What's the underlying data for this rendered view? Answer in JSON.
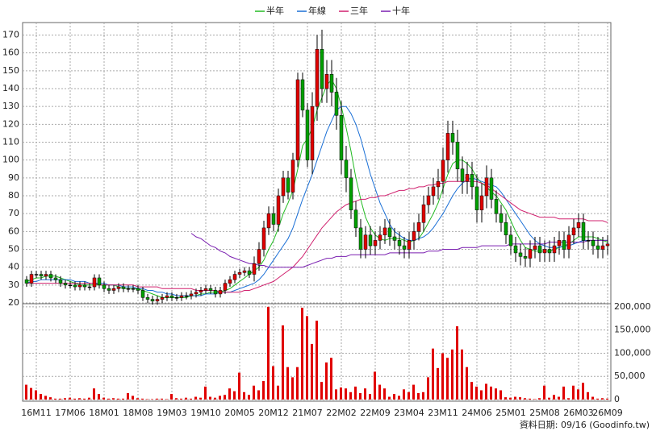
{
  "chart_data": {
    "type": "candlestick",
    "annotation": "資料日期: 09/16  (Goodinfo.tw)",
    "legend": "top",
    "grid": true,
    "up_color": "#e00000",
    "down_color": "#00a000",
    "categories": [
      null,
      null,
      "16M11",
      null,
      null,
      null,
      null,
      null,
      null,
      "17M06",
      null,
      null,
      null,
      null,
      null,
      null,
      "18M01",
      null,
      null,
      null,
      null,
      null,
      null,
      "18M08",
      null,
      null,
      null,
      null,
      null,
      null,
      "19M03",
      null,
      null,
      null,
      null,
      null,
      null,
      "19M10",
      null,
      null,
      null,
      null,
      null,
      null,
      "20M05",
      null,
      null,
      null,
      null,
      null,
      null,
      "20M12",
      null,
      null,
      null,
      null,
      null,
      null,
      "21M07",
      null,
      null,
      null,
      null,
      null,
      null,
      "22M02",
      null,
      null,
      null,
      null,
      null,
      null,
      "22M09",
      null,
      null,
      null,
      null,
      null,
      null,
      "23M04",
      null,
      null,
      null,
      null,
      null,
      null,
      "23M11",
      null,
      null,
      null,
      null,
      null,
      null,
      "24M06",
      null,
      null,
      null,
      null,
      null,
      null,
      "25M01",
      null,
      null,
      null,
      null,
      null,
      null,
      "25M08",
      null,
      null,
      null,
      null,
      null,
      null,
      "26M03",
      null,
      null,
      null,
      null,
      null,
      "26M09"
    ],
    "open": [
      33,
      31,
      36,
      36,
      35,
      36,
      34,
      33,
      31,
      30,
      30,
      29,
      30,
      29,
      29,
      34,
      30,
      28,
      27,
      28,
      29,
      28,
      28,
      28,
      27,
      23,
      22,
      21,
      22,
      23,
      24,
      23,
      23,
      24,
      24,
      25,
      26,
      27,
      28,
      27,
      25,
      27,
      31,
      33,
      36,
      37,
      38,
      36,
      42,
      50,
      62,
      70,
      64,
      80,
      90,
      82,
      100,
      145,
      128,
      100,
      130,
      162,
      140,
      148,
      138,
      125,
      100,
      90,
      72,
      62,
      50,
      58,
      52,
      55,
      58,
      62,
      57,
      55,
      52,
      50,
      55,
      60,
      65,
      75,
      80,
      85,
      88,
      100,
      115,
      110,
      95,
      88,
      92,
      85,
      72,
      80,
      90,
      78,
      70,
      65,
      58,
      52,
      48,
      46,
      45,
      50,
      52,
      48,
      50,
      48,
      52,
      55,
      50,
      58,
      62,
      65,
      55,
      55,
      52,
      50,
      52
    ],
    "high": [
      35,
      38,
      38,
      38,
      38,
      38,
      36,
      35,
      33,
      32,
      32,
      32,
      32,
      31,
      36,
      36,
      32,
      30,
      30,
      31,
      31,
      30,
      30,
      30,
      29,
      25,
      24,
      24,
      25,
      26,
      26,
      25,
      26,
      26,
      27,
      28,
      29,
      30,
      30,
      29,
      29,
      33,
      35,
      38,
      39,
      40,
      40,
      46,
      54,
      66,
      74,
      74,
      84,
      94,
      94,
      104,
      149,
      149,
      132,
      138,
      170,
      173,
      156,
      156,
      146,
      133,
      108,
      95,
      77,
      67,
      63,
      63,
      60,
      63,
      67,
      67,
      62,
      60,
      57,
      60,
      65,
      70,
      80,
      85,
      90,
      95,
      107,
      122,
      122,
      117,
      102,
      99,
      99,
      92,
      87,
      97,
      95,
      83,
      75,
      70,
      63,
      57,
      53,
      51,
      55,
      57,
      57,
      55,
      55,
      57,
      60,
      60,
      63,
      67,
      70,
      70,
      60,
      60,
      57,
      57,
      58
    ],
    "low": [
      29,
      29,
      34,
      33,
      33,
      32,
      31,
      29,
      28,
      28,
      27,
      27,
      27,
      27,
      27,
      28,
      26,
      25,
      25,
      26,
      26,
      26,
      26,
      25,
      21,
      20,
      19,
      19,
      20,
      21,
      21,
      21,
      21,
      22,
      22,
      23,
      24,
      25,
      25,
      23,
      23,
      25,
      29,
      31,
      34,
      35,
      34,
      32,
      38,
      46,
      58,
      60,
      60,
      76,
      78,
      78,
      96,
      124,
      96,
      92,
      122,
      132,
      132,
      130,
      117,
      92,
      82,
      67,
      57,
      45,
      45,
      47,
      47,
      50,
      53,
      52,
      50,
      47,
      45,
      45,
      50,
      55,
      60,
      70,
      75,
      78,
      81,
      93,
      103,
      88,
      81,
      81,
      78,
      65,
      65,
      73,
      73,
      65,
      60,
      53,
      47,
      43,
      41,
      40,
      40,
      45,
      43,
      43,
      43,
      43,
      47,
      45,
      45,
      53,
      57,
      50,
      50,
      47,
      45,
      45,
      47
    ],
    "close": [
      31,
      36,
      36,
      35,
      36,
      34,
      33,
      31,
      30,
      30,
      29,
      30,
      29,
      29,
      34,
      30,
      28,
      27,
      28,
      29,
      28,
      28,
      28,
      27,
      23,
      22,
      21,
      22,
      23,
      24,
      23,
      23,
      24,
      24,
      25,
      26,
      27,
      28,
      27,
      25,
      27,
      31,
      33,
      36,
      37,
      38,
      36,
      42,
      50,
      62,
      70,
      64,
      80,
      90,
      82,
      100,
      145,
      128,
      100,
      130,
      162,
      140,
      148,
      138,
      125,
      100,
      90,
      72,
      62,
      50,
      58,
      52,
      55,
      58,
      62,
      57,
      55,
      52,
      50,
      55,
      60,
      65,
      75,
      80,
      85,
      88,
      100,
      115,
      110,
      95,
      88,
      92,
      85,
      72,
      80,
      90,
      78,
      70,
      65,
      58,
      52,
      48,
      46,
      45,
      50,
      52,
      48,
      50,
      48,
      52,
      55,
      50,
      58,
      62,
      65,
      55,
      55,
      52,
      50,
      52,
      53
    ],
    "series": [
      {
        "name": "半年",
        "color": "#22bb22",
        "values": [
          32,
          33,
          34,
          34,
          35,
          35,
          35,
          34,
          33,
          32,
          31,
          30,
          30,
          30,
          30,
          30,
          30,
          30,
          30,
          29,
          28,
          28,
          28,
          28,
          27,
          26,
          25,
          24,
          23,
          23,
          23,
          23,
          23,
          23,
          24,
          24,
          25,
          25,
          26,
          26,
          26,
          27,
          28,
          30,
          32,
          34,
          36,
          38,
          40,
          44,
          50,
          55,
          62,
          70,
          76,
          83,
          95,
          108,
          112,
          118,
          128,
          135,
          142,
          145,
          140,
          130,
          118,
          105,
          90,
          78,
          68,
          62,
          58,
          56,
          55,
          56,
          56,
          56,
          55,
          54,
          55,
          56,
          60,
          65,
          70,
          76,
          84,
          92,
          98,
          100,
          100,
          98,
          95,
          90,
          87,
          85,
          82,
          80,
          76,
          72,
          66,
          60,
          55,
          51,
          50,
          49,
          49,
          49,
          49,
          50,
          51,
          52,
          53,
          55,
          57,
          57,
          57,
          57,
          56,
          55,
          54
        ]
      },
      {
        "name": "年線",
        "color": "#1a6fd6",
        "values": [
          31,
          32,
          32,
          33,
          33,
          33,
          33,
          33,
          33,
          33,
          32,
          32,
          32,
          31,
          31,
          31,
          31,
          30,
          30,
          30,
          29,
          29,
          29,
          28,
          28,
          27,
          27,
          26,
          26,
          25,
          25,
          24,
          24,
          24,
          24,
          24,
          24,
          25,
          25,
          25,
          26,
          26,
          26,
          27,
          28,
          29,
          30,
          31,
          33,
          36,
          40,
          44,
          48,
          52,
          56,
          62,
          70,
          78,
          85,
          92,
          100,
          108,
          116,
          122,
          128,
          130,
          130,
          126,
          120,
          112,
          102,
          92,
          84,
          76,
          70,
          64,
          60,
          58,
          56,
          55,
          55,
          56,
          57,
          59,
          62,
          66,
          70,
          75,
          80,
          84,
          87,
          89,
          90,
          89,
          88,
          87,
          86,
          85,
          82,
          78,
          74,
          70,
          66,
          62,
          58,
          55,
          53,
          52,
          51,
          51,
          51,
          52,
          52,
          53,
          54,
          55,
          55,
          55,
          55,
          55,
          55
        ]
      },
      {
        "name": "三年",
        "color": "#d0206e",
        "values": [
          31,
          31,
          31,
          31,
          31,
          31,
          31,
          31,
          31,
          31,
          31,
          31,
          31,
          31,
          31,
          30,
          30,
          30,
          30,
          30,
          30,
          30,
          30,
          29,
          29,
          29,
          29,
          29,
          28,
          28,
          28,
          28,
          28,
          28,
          28,
          27,
          27,
          27,
          27,
          27,
          26,
          26,
          26,
          26,
          26,
          27,
          27,
          28,
          29,
          30,
          31,
          32,
          34,
          36,
          38,
          40,
          43,
          46,
          50,
          54,
          58,
          62,
          65,
          68,
          71,
          73,
          75,
          76,
          77,
          78,
          78,
          79,
          79,
          80,
          80,
          81,
          82,
          83,
          83,
          84,
          84,
          85,
          85,
          86,
          86,
          87,
          87,
          88,
          88,
          88,
          88,
          88,
          88,
          88,
          87,
          86,
          84,
          82,
          80,
          78,
          76,
          74,
          72,
          71,
          70,
          69,
          68,
          68,
          68,
          68,
          67,
          67,
          67,
          67,
          67,
          67,
          66,
          66,
          66,
          66,
          65
        ]
      },
      {
        "name": "十年",
        "color": "#7a1fb0",
        "values": [
          null,
          null,
          null,
          null,
          null,
          null,
          null,
          null,
          null,
          null,
          null,
          null,
          null,
          null,
          null,
          null,
          null,
          null,
          null,
          null,
          null,
          null,
          null,
          null,
          null,
          null,
          null,
          null,
          null,
          null,
          null,
          null,
          null,
          null,
          59,
          57,
          56,
          54,
          52,
          51,
          49,
          48,
          46,
          45,
          44,
          43,
          42,
          42,
          41,
          41,
          40,
          40,
          40,
          40,
          40,
          40,
          40,
          40,
          41,
          42,
          43,
          44,
          45,
          45,
          46,
          46,
          46,
          47,
          47,
          47,
          47,
          47,
          47,
          47,
          47,
          48,
          48,
          48,
          48,
          48,
          48,
          48,
          48,
          49,
          49,
          49,
          50,
          50,
          50,
          50,
          51,
          51,
          51,
          51,
          52,
          52,
          52,
          52,
          52,
          52,
          53,
          53,
          53,
          53,
          53,
          53,
          53,
          53,
          54,
          54,
          54,
          54,
          54,
          54,
          54,
          54,
          55,
          55,
          55,
          55,
          55
        ]
      }
    ],
    "volume": {
      "axis": "y2",
      "color": "#e00000",
      "values": [
        32000,
        25000,
        20000,
        12000,
        8000,
        5000,
        2000,
        2000,
        3000,
        4000,
        2000,
        3000,
        2000,
        4000,
        24000,
        12000,
        4000,
        2000,
        3000,
        2000,
        2000,
        14000,
        8000,
        3000,
        2000,
        1000,
        1000,
        2000,
        2000,
        1000,
        12000,
        3000,
        2000,
        4000,
        2000,
        6000,
        4000,
        28000,
        6000,
        4000,
        8000,
        10000,
        24000,
        18000,
        58000,
        16000,
        10000,
        30000,
        20000,
        40000,
        200000,
        72000,
        30000,
        160000,
        70000,
        48000,
        70000,
        198000,
        180000,
        120000,
        170000,
        38000,
        80000,
        90000,
        22000,
        26000,
        24000,
        16000,
        28000,
        14000,
        24000,
        12000,
        60000,
        32000,
        24000,
        6000,
        12000,
        8000,
        22000,
        16000,
        32000,
        14000,
        16000,
        48000,
        110000,
        68000,
        100000,
        90000,
        108000,
        158000,
        108000,
        70000,
        38000,
        28000,
        20000,
        34000,
        28000,
        24000,
        20000,
        5000,
        4000,
        6000,
        5000,
        3000,
        2000,
        1000,
        3000,
        30000,
        4000,
        10000,
        6000,
        28000,
        3000,
        30000,
        22000,
        36000,
        16000,
        6000,
        2000,
        3000,
        2000
      ]
    },
    "ylim": [
      20,
      177
    ],
    "yticks": [
      20,
      30,
      40,
      50,
      60,
      70,
      80,
      90,
      100,
      110,
      120,
      130,
      140,
      150,
      160,
      170
    ],
    "y2lim": [
      0,
      205000
    ],
    "y2ticks": [
      0,
      {
        "value": 50000,
        "label": "50,000"
      },
      {
        "value": 100000,
        "label": "100,000"
      },
      {
        "value": 150000,
        "label": "150,000"
      },
      {
        "value": 200000,
        "label": "200,000"
      }
    ]
  }
}
